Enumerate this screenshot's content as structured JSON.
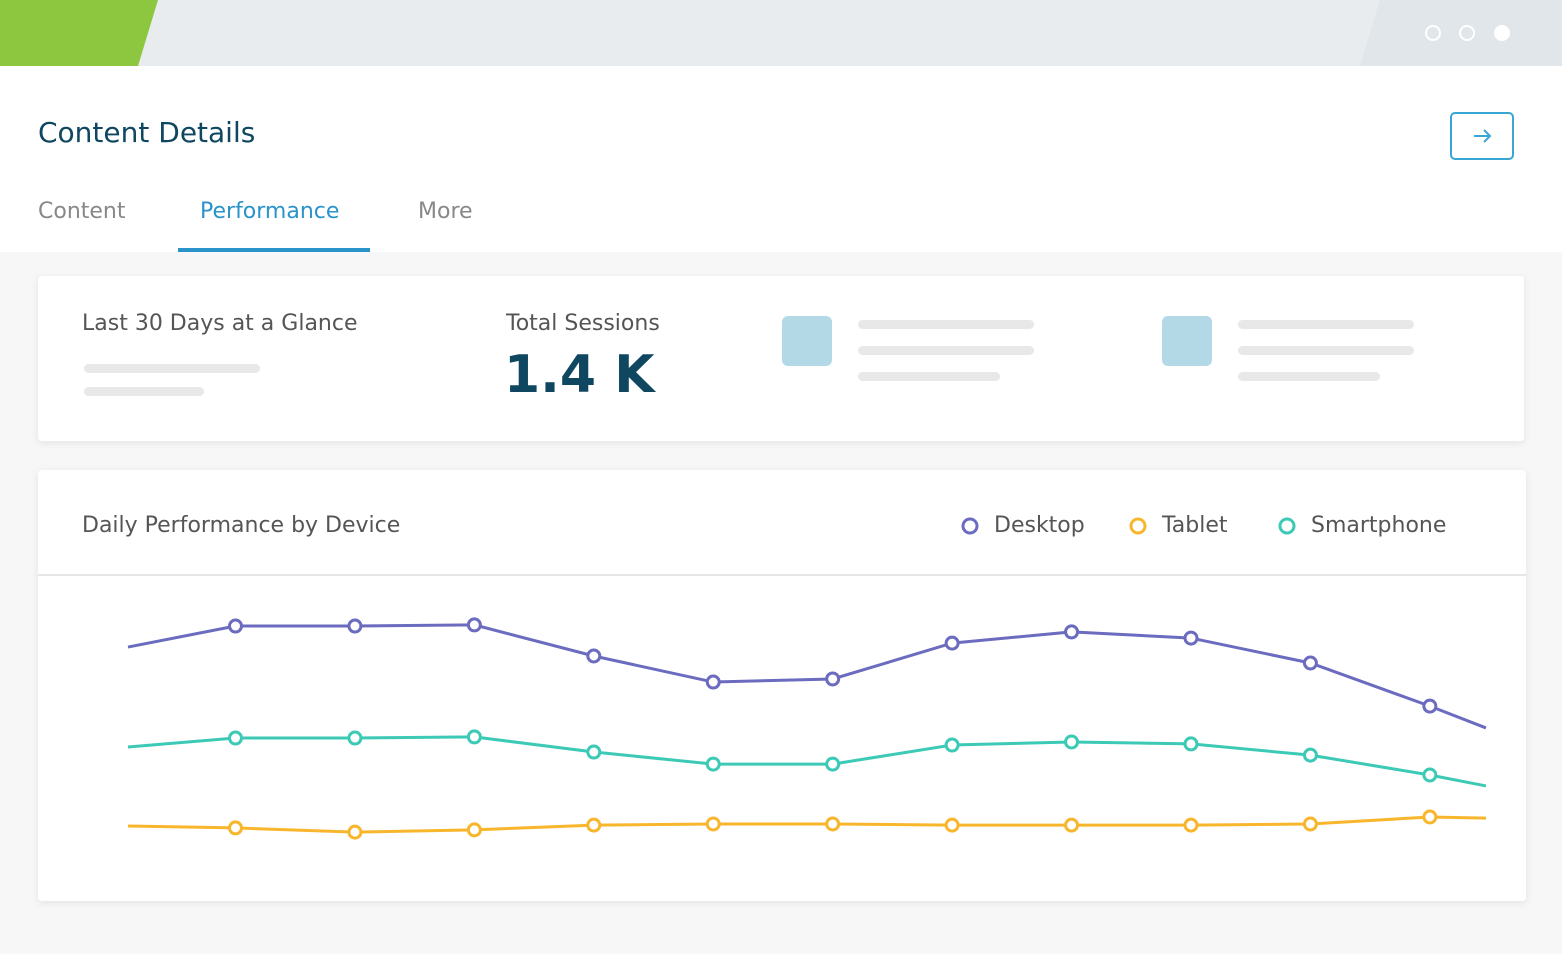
{
  "header": {
    "title": "Content Details"
  },
  "tabs": [
    "Content",
    "Performance",
    "More"
  ],
  "active_tab": 1,
  "glance": {
    "title": "Last 30 Days at a Glance",
    "metric_label": "Total Sessions",
    "metric_value": "1.4 K"
  },
  "chart_data": {
    "type": "line",
    "title": "Daily Performance by Device",
    "x": [
      -0.9,
      0,
      1,
      2,
      3,
      4,
      5,
      6,
      7,
      8,
      9,
      10,
      10.47
    ],
    "xlim": [
      -0.9,
      10.47
    ],
    "ylim": [
      0,
      100
    ],
    "series": [
      {
        "name": "Desktop",
        "color": "#6b6bbf",
        "values": [
          83.2,
          90.7,
          90.7,
          91.1,
          80.0,
          70.7,
          71.8,
          84.6,
          88.6,
          86.4,
          77.5,
          62.1,
          54.3
        ]
      },
      {
        "name": "Tablet",
        "color": "#f8b62d",
        "values": [
          19.3,
          18.6,
          17.1,
          17.9,
          19.6,
          20.0,
          20.0,
          19.6,
          19.6,
          19.6,
          20.0,
          22.5,
          22.1
        ]
      },
      {
        "name": "Smartphone",
        "color": "#3cc9b5",
        "values": [
          47.5,
          50.7,
          50.7,
          51.1,
          45.7,
          41.4,
          41.4,
          48.2,
          49.3,
          48.6,
          44.6,
          37.5,
          33.6
        ]
      }
    ]
  }
}
